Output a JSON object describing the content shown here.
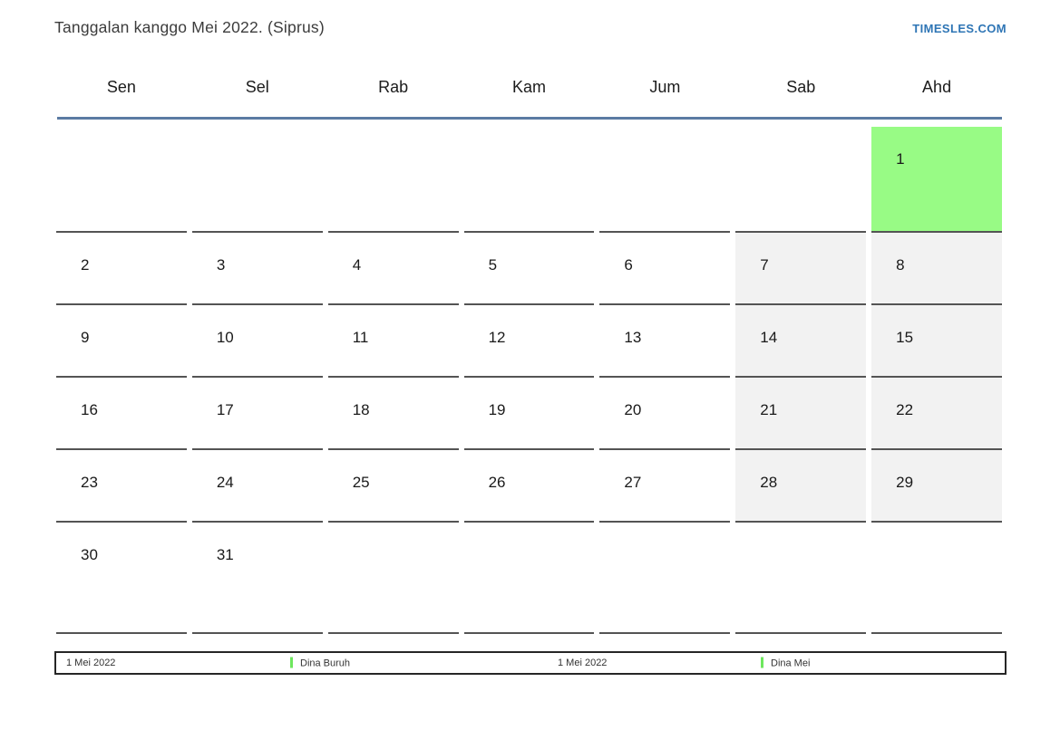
{
  "header": {
    "title": "Tanggalan kanggo Mei 2022. (Siprus)",
    "site_link": "TIMESLES.COM"
  },
  "calendar": {
    "weekdays": [
      "Sen",
      "Sel",
      "Rab",
      "Kam",
      "Jum",
      "Sab",
      "Ahd"
    ],
    "weeks": [
      [
        {
          "day": "",
          "type": "empty"
        },
        {
          "day": "",
          "type": "empty"
        },
        {
          "day": "",
          "type": "empty"
        },
        {
          "day": "",
          "type": "empty"
        },
        {
          "day": "",
          "type": "empty"
        },
        {
          "day": "",
          "type": "empty"
        },
        {
          "day": "1",
          "type": "holiday"
        }
      ],
      [
        {
          "day": "2",
          "type": "normal"
        },
        {
          "day": "3",
          "type": "normal"
        },
        {
          "day": "4",
          "type": "normal"
        },
        {
          "day": "5",
          "type": "normal"
        },
        {
          "day": "6",
          "type": "normal"
        },
        {
          "day": "7",
          "type": "weekend"
        },
        {
          "day": "8",
          "type": "weekend"
        }
      ],
      [
        {
          "day": "9",
          "type": "normal"
        },
        {
          "day": "10",
          "type": "normal"
        },
        {
          "day": "11",
          "type": "normal"
        },
        {
          "day": "12",
          "type": "normal"
        },
        {
          "day": "13",
          "type": "normal"
        },
        {
          "day": "14",
          "type": "weekend"
        },
        {
          "day": "15",
          "type": "weekend"
        }
      ],
      [
        {
          "day": "16",
          "type": "normal"
        },
        {
          "day": "17",
          "type": "normal"
        },
        {
          "day": "18",
          "type": "normal"
        },
        {
          "day": "19",
          "type": "normal"
        },
        {
          "day": "20",
          "type": "normal"
        },
        {
          "day": "21",
          "type": "weekend"
        },
        {
          "day": "22",
          "type": "weekend"
        }
      ],
      [
        {
          "day": "23",
          "type": "normal"
        },
        {
          "day": "24",
          "type": "normal"
        },
        {
          "day": "25",
          "type": "normal"
        },
        {
          "day": "26",
          "type": "normal"
        },
        {
          "day": "27",
          "type": "normal"
        },
        {
          "day": "28",
          "type": "weekend"
        },
        {
          "day": "29",
          "type": "weekend"
        }
      ],
      [
        {
          "day": "30",
          "type": "normal"
        },
        {
          "day": "31",
          "type": "normal"
        },
        {
          "day": "",
          "type": "empty"
        },
        {
          "day": "",
          "type": "empty"
        },
        {
          "day": "",
          "type": "empty"
        },
        {
          "day": "",
          "type": "empty"
        },
        {
          "day": "",
          "type": "empty"
        }
      ]
    ]
  },
  "legend": {
    "items": [
      {
        "text": "1 Mei 2022",
        "type": "date"
      },
      {
        "text": "Dina Buruh",
        "type": "event"
      },
      {
        "text": "1 Mei 2022",
        "type": "date"
      },
      {
        "text": "Dina Mei",
        "type": "event"
      }
    ]
  },
  "colors": {
    "holiday-green": "#98fb85",
    "weekend-gray": "#f2f2f2",
    "event-marker-green": "#6ee75e",
    "header-rule-blue": "#5b7ba3",
    "link-blue": "#2e75b5",
    "cell-border": "#545454"
  }
}
